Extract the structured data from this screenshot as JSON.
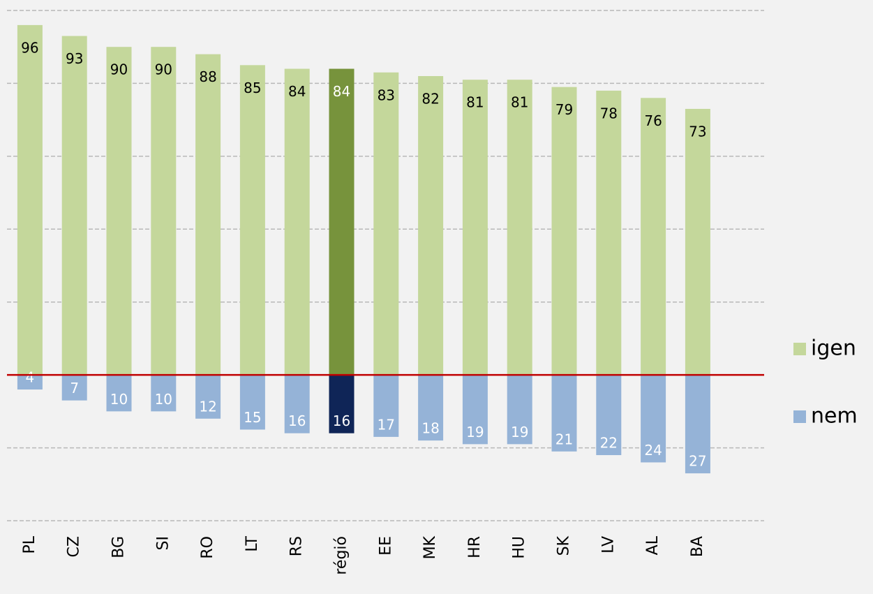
{
  "chart_data": {
    "type": "diverging_bar",
    "categories": [
      "PL",
      "CZ",
      "BG",
      "SI",
      "RO",
      "LT",
      "RS",
      "régió",
      "EE",
      "MK",
      "HR",
      "HU",
      "SK",
      "LV",
      "AL",
      "BA"
    ],
    "series": [
      {
        "name": "igen",
        "color": "#c4d79b",
        "highlight_color": "#77933c",
        "label_color": "#000000",
        "highlight_label_color": "#ffffff",
        "values": [
          96,
          93,
          90,
          90,
          88,
          85,
          84,
          84,
          83,
          82,
          81,
          81,
          79,
          78,
          76,
          73
        ]
      },
      {
        "name": "nem",
        "color": "#95b3d7",
        "highlight_color": "#0f2557",
        "label_color": "#ffffff",
        "highlight_label_color": "#ffffff",
        "values": [
          -4,
          -7,
          -10,
          -10,
          -12,
          -15,
          -16,
          -16,
          -17,
          -18,
          -19,
          -19,
          -21,
          -22,
          -24,
          -27
        ],
        "value_labels": [
          "4",
          "7",
          "10",
          "10",
          "12",
          "15",
          "16",
          "16",
          "17",
          "18",
          "19",
          "19",
          "21",
          "22",
          "24",
          "27"
        ]
      }
    ],
    "highlight_category": "régió",
    "zero_line_color": "#c00000",
    "ylim": [
      -40,
      100
    ],
    "yticks": [
      -40,
      -20,
      0,
      20,
      40,
      60,
      80,
      100
    ],
    "grid": true,
    "legend": "right"
  }
}
